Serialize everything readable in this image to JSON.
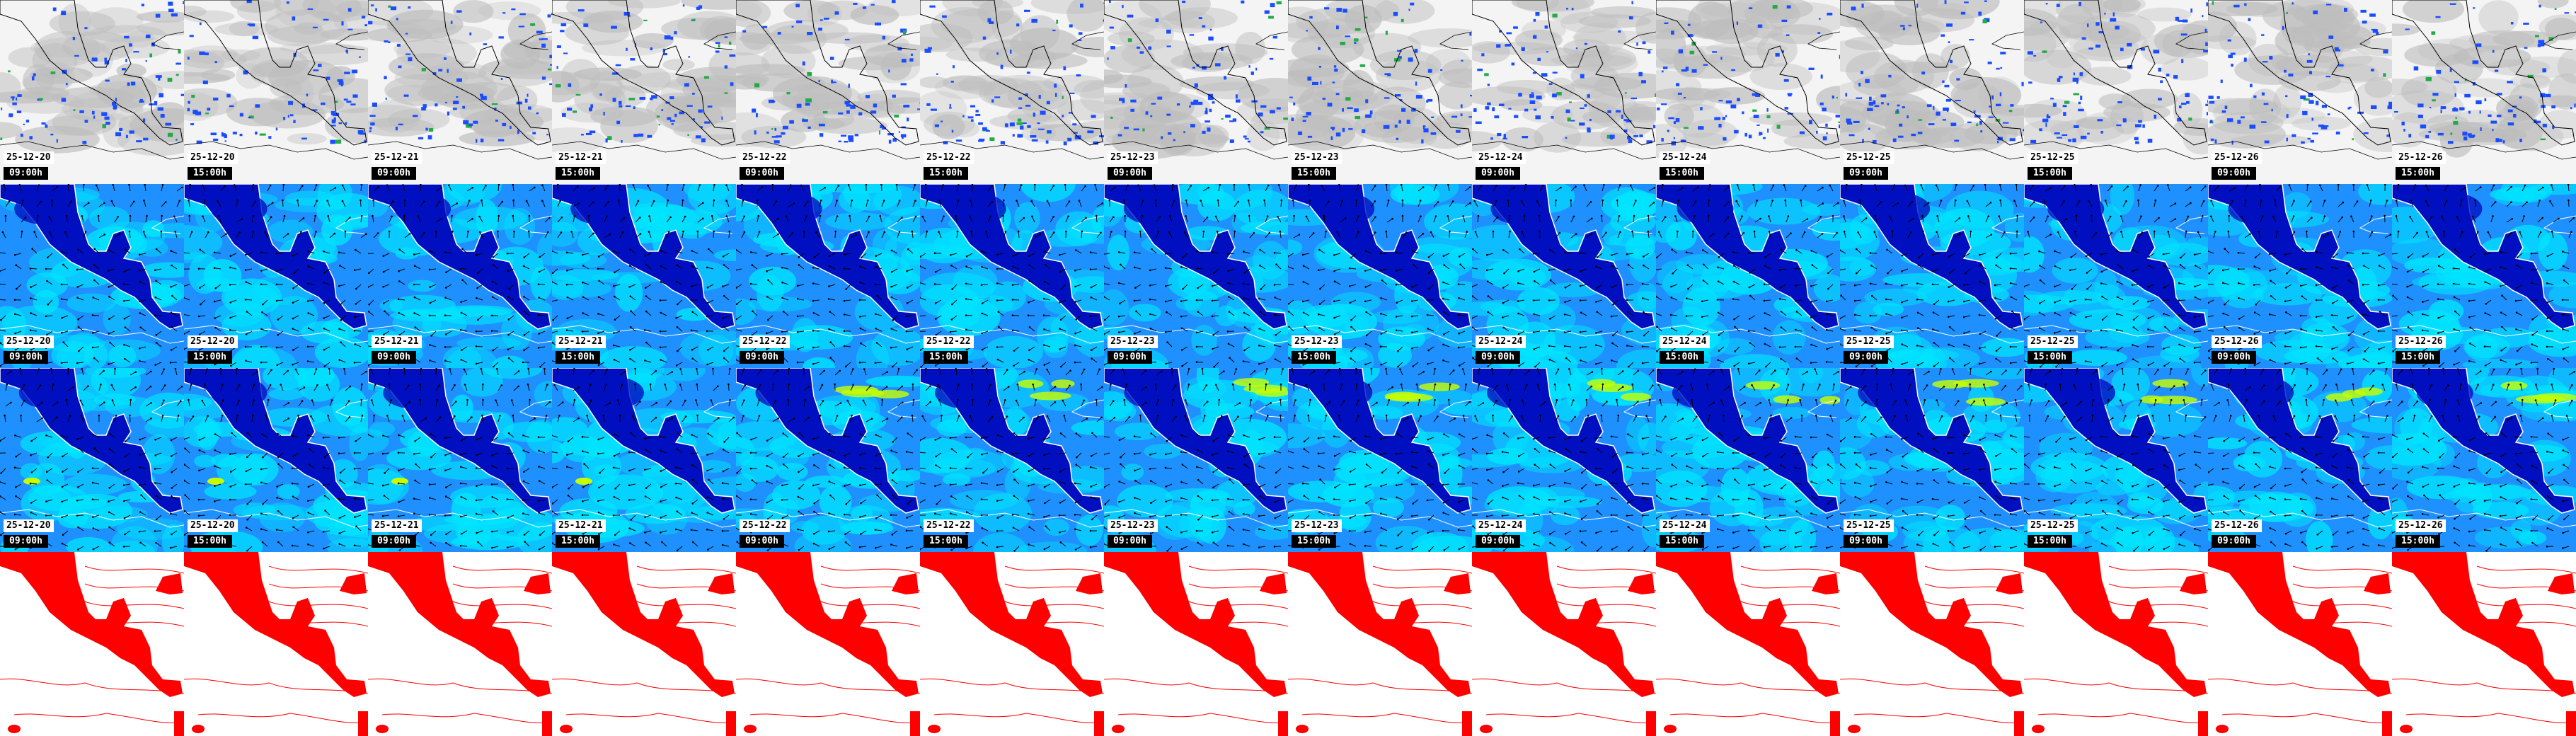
{
  "rows": [
    {
      "product": "satellite-cloud-precipitation",
      "has_labels": true
    },
    {
      "product": "wind-speed-arrows-level-1",
      "has_labels": true
    },
    {
      "product": "wind-speed-arrows-level-2",
      "has_labels": true
    },
    {
      "product": "contour-map",
      "has_labels": false
    }
  ],
  "columns": [
    {
      "date": "25-12-20",
      "time": "09:00h"
    },
    {
      "date": "25-12-20",
      "time": "15:00h"
    },
    {
      "date": "25-12-21",
      "time": "09:00h"
    },
    {
      "date": "25-12-21",
      "time": "15:00h"
    },
    {
      "date": "25-12-22",
      "time": "09:00h"
    },
    {
      "date": "25-12-22",
      "time": "15:00h"
    },
    {
      "date": "25-12-23",
      "time": "09:00h"
    },
    {
      "date": "25-12-23",
      "time": "15:00h"
    },
    {
      "date": "25-12-24",
      "time": "09:00h"
    },
    {
      "date": "25-12-24",
      "time": "15:00h"
    },
    {
      "date": "25-12-25",
      "time": "09:00h"
    },
    {
      "date": "25-12-25",
      "time": "15:00h"
    },
    {
      "date": "25-12-26",
      "time": "09:00h"
    },
    {
      "date": "25-12-26",
      "time": "15:00h"
    }
  ],
  "colors": {
    "precip": "#1a4dff",
    "cloud": "#bdbdbd",
    "wind_low": "#0010c0",
    "wind_mid": "#1e90ff",
    "wind_high": "#00e5ff",
    "wind_peak": "#c8ff00",
    "contour": "#ff0000"
  }
}
